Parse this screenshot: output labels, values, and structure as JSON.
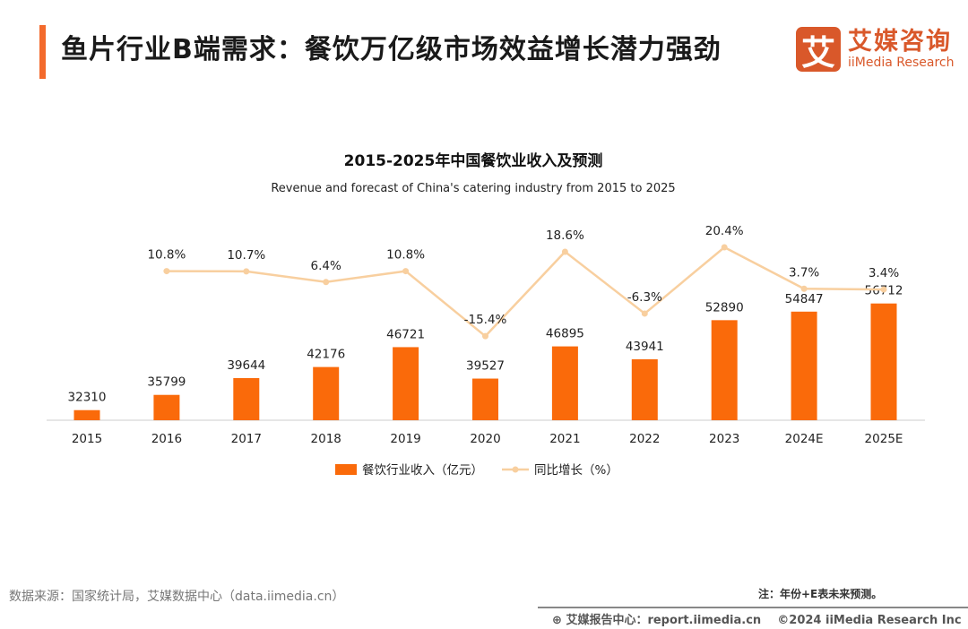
{
  "header": {
    "title": "鱼片行业B端需求：餐饮万亿级市场效益增长潜力强劲",
    "logo_cn": "艾媒咨询",
    "logo_en": "iiMedia Research",
    "logo_mark": "艾"
  },
  "chart_data": {
    "type": "bar+line",
    "title": "2015-2025年中国餐饮业收入及预测",
    "subtitle": "Revenue and forecast of China's catering industry from 2015 to 2025",
    "categories": [
      "2015",
      "2016",
      "2017",
      "2018",
      "2019",
      "2020",
      "2021",
      "2022",
      "2023",
      "2024E",
      "2025E"
    ],
    "series": [
      {
        "name": "餐饮行业收入（亿元）",
        "type": "bar",
        "color": "#fa6a0a",
        "values": [
          32310,
          35799,
          39644,
          42176,
          46721,
          39527,
          46895,
          43941,
          52890,
          54847,
          56712
        ]
      },
      {
        "name": "同比增长（%）",
        "type": "line",
        "color": "#f8cf9f",
        "values": [
          null,
          10.8,
          10.7,
          6.4,
          10.8,
          -15.4,
          18.6,
          -6.3,
          20.4,
          3.7,
          3.4
        ],
        "labels": [
          "",
          "10.8%",
          "10.7%",
          "6.4%",
          "10.8%",
          "-15.4%",
          "18.6%",
          "-6.3%",
          "20.4%",
          "3.7%",
          "3.4%"
        ]
      }
    ],
    "legend": "bottom",
    "grid": false
  },
  "footer": {
    "source": "数据来源：国家统计局，艾媒数据中心（data.iimedia.cn）",
    "note": "注：年份+E表未来预测。",
    "report_center": "艾媒报告中心：report.iimedia.cn",
    "copyright": "©2024  iiMedia Research  Inc"
  }
}
